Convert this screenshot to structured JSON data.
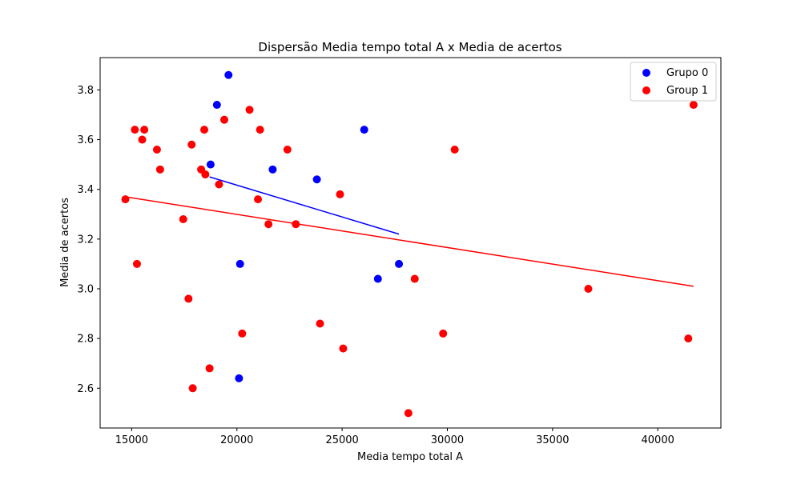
{
  "chart_data": {
    "type": "scatter",
    "title": "Dispersão Media tempo total A x Media de acertos",
    "xlabel": "Media tempo total A",
    "ylabel": "Media de acertos",
    "xlim": [
      13500,
      43000
    ],
    "ylim": [
      2.44,
      3.93
    ],
    "xticks": [
      15000,
      20000,
      25000,
      30000,
      35000,
      40000
    ],
    "xtick_labels": [
      "15000",
      "20000",
      "25000",
      "30000",
      "35000",
      "40000"
    ],
    "yticks": [
      2.6,
      2.8,
      3.0,
      3.2,
      3.4,
      3.6,
      3.8
    ],
    "ytick_labels": [
      "2.6",
      "2.8",
      "3.0",
      "3.2",
      "3.4",
      "3.6",
      "3.8"
    ],
    "grid": false,
    "legend": "top-right",
    "series": [
      {
        "name": "Grupo 0",
        "color": "#0000ff",
        "points": [
          [
            19600,
            3.86
          ],
          [
            19050,
            3.74
          ],
          [
            18750,
            3.5
          ],
          [
            21700,
            3.48
          ],
          [
            23800,
            3.44
          ],
          [
            26050,
            3.64
          ],
          [
            20150,
            3.1
          ],
          [
            27700,
            3.1
          ],
          [
            26700,
            3.04
          ],
          [
            20100,
            2.64
          ]
        ],
        "trendline": [
          [
            18700,
            3.45
          ],
          [
            27700,
            3.22
          ]
        ]
      },
      {
        "name": "Group 1",
        "color": "#ff0000",
        "points": [
          [
            14700,
            3.36
          ],
          [
            15150,
            3.64
          ],
          [
            15600,
            3.64
          ],
          [
            15500,
            3.6
          ],
          [
            16200,
            3.56
          ],
          [
            16350,
            3.48
          ],
          [
            17850,
            3.58
          ],
          [
            18450,
            3.64
          ],
          [
            19400,
            3.68
          ],
          [
            20600,
            3.72
          ],
          [
            21100,
            3.64
          ],
          [
            22400,
            3.56
          ],
          [
            18300,
            3.48
          ],
          [
            18500,
            3.46
          ],
          [
            19150,
            3.42
          ],
          [
            21000,
            3.36
          ],
          [
            24900,
            3.38
          ],
          [
            15250,
            3.1
          ],
          [
            17450,
            3.28
          ],
          [
            21500,
            3.26
          ],
          [
            22800,
            3.26
          ],
          [
            17700,
            2.96
          ],
          [
            20250,
            2.82
          ],
          [
            23950,
            2.86
          ],
          [
            25050,
            2.76
          ],
          [
            18700,
            2.68
          ],
          [
            17900,
            2.6
          ],
          [
            28450,
            3.04
          ],
          [
            28150,
            2.5
          ],
          [
            29800,
            2.82
          ],
          [
            30350,
            3.56
          ],
          [
            36700,
            3.0
          ],
          [
            41450,
            2.8
          ],
          [
            41700,
            3.74
          ]
        ],
        "trendline": [
          [
            14700,
            3.37
          ],
          [
            41700,
            3.01
          ]
        ]
      }
    ]
  }
}
